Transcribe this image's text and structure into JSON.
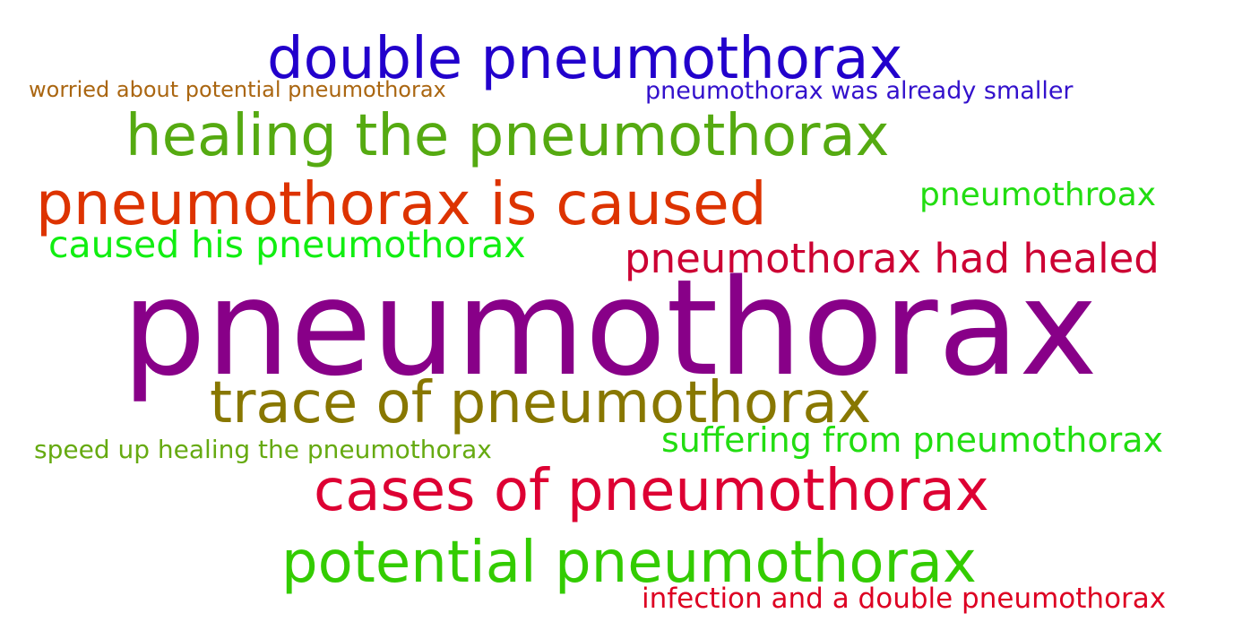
{
  "words": [
    {
      "id": "w-double",
      "text": "double pneumothorax",
      "color": "#2200cc"
    },
    {
      "id": "w-worried",
      "text": "worried about potential pneumothorax",
      "color": "#aa6611"
    },
    {
      "id": "w-smaller",
      "text": "pneumothorax was already smaller",
      "color": "#3311cc"
    },
    {
      "id": "w-healing",
      "text": "healing the pneumothorax",
      "color": "#55aa11"
    },
    {
      "id": "w-caused-is",
      "text": "pneumothorax is caused",
      "color": "#dd3300"
    },
    {
      "id": "w-throax",
      "text": "pneumothroax",
      "color": "#22dd11"
    },
    {
      "id": "w-caused-his",
      "text": "caused his pneumothorax",
      "color": "#11ee11"
    },
    {
      "id": "w-had-healed",
      "text": "pneumothorax had healed",
      "color": "#cc0033"
    },
    {
      "id": "w-main",
      "text": "pneumothorax",
      "color": "#880088"
    },
    {
      "id": "w-trace",
      "text": "trace of pneumothorax",
      "color": "#887700"
    },
    {
      "id": "w-speed",
      "text": "speed up healing the pneumothorax",
      "color": "#66aa11"
    },
    {
      "id": "w-suffering",
      "text": "suffering from pneumothorax",
      "color": "#22dd11"
    },
    {
      "id": "w-cases",
      "text": "cases of pneumothorax",
      "color": "#dd0033"
    },
    {
      "id": "w-potential",
      "text": "potential pneumothorax",
      "color": "#33cc00"
    },
    {
      "id": "w-infection",
      "text": "infection and a double pneumothorax",
      "color": "#dd0022"
    }
  ]
}
